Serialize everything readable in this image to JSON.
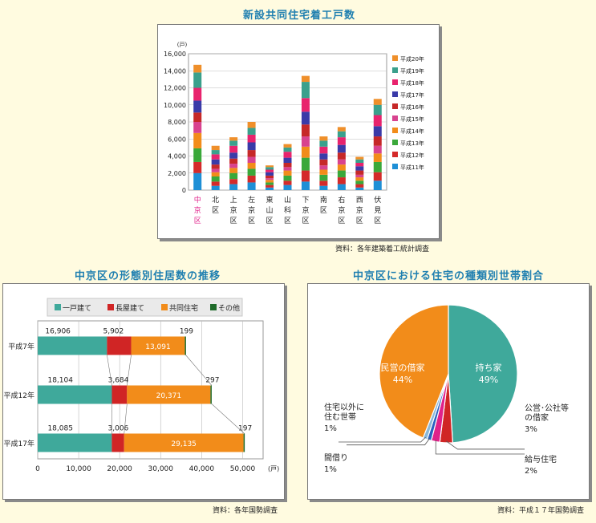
{
  "titles": {
    "chart1": "新設共同住宅着工戸数",
    "chart2": "中京区の形態別住居数の推移",
    "chart3": "中京区における住宅の種類別世帯割合"
  },
  "sources": {
    "chart1": "資料：各年建築着工統計調査",
    "chart2": "資料：各年国勢調査",
    "chart3": "資料：平成１７年国勢調査"
  },
  "chart_data": [
    {
      "type": "bar",
      "stacked": true,
      "title": "新設共同住宅着工戸数",
      "ylabel": "(戸)",
      "ylim": [
        0,
        16000
      ],
      "yticks": [
        "0",
        "2,000",
        "4,000",
        "6,000",
        "8,000",
        "10,000",
        "12,000",
        "14,000",
        "16,000"
      ],
      "yticks_values": [
        0,
        2000,
        4000,
        6000,
        8000,
        10000,
        12000,
        14000,
        16000
      ],
      "categories": [
        "中京区",
        "北区",
        "上京区",
        "左京区",
        "東山区",
        "山科区",
        "下京区",
        "南区",
        "右京区",
        "西京区",
        "伏見区"
      ],
      "highlight_category": "中京区",
      "highlight_color": "#e0218a",
      "legend_position": "right",
      "series": [
        {
          "name": "平成11年",
          "color": "#1e8fd6",
          "values": [
            2000,
            500,
            700,
            900,
            300,
            600,
            1000,
            500,
            700,
            300,
            1100
          ]
        },
        {
          "name": "平成12年",
          "color": "#d42a2a",
          "values": [
            1300,
            500,
            600,
            800,
            300,
            500,
            1300,
            600,
            800,
            400,
            1000
          ]
        },
        {
          "name": "平成13年",
          "color": "#3aa83a",
          "values": [
            1600,
            600,
            700,
            800,
            300,
            600,
            1500,
            700,
            800,
            400,
            1200
          ]
        },
        {
          "name": "平成14年",
          "color": "#f28c1a",
          "values": [
            1800,
            500,
            600,
            700,
            300,
            600,
            1300,
            600,
            700,
            400,
            1000
          ]
        },
        {
          "name": "平成15年",
          "color": "#d8438f",
          "values": [
            1300,
            400,
            500,
            700,
            200,
            400,
            1200,
            500,
            600,
            300,
            900
          ]
        },
        {
          "name": "平成16年",
          "color": "#c62828",
          "values": [
            1100,
            500,
            600,
            800,
            300,
            500,
            1400,
            700,
            800,
            500,
            1100
          ]
        },
        {
          "name": "平成17年",
          "color": "#3a3aa8",
          "values": [
            1400,
            600,
            700,
            900,
            400,
            600,
            1500,
            700,
            900,
            500,
            1200
          ]
        },
        {
          "name": "平成18年",
          "color": "#e8236d",
          "values": [
            1500,
            600,
            800,
            900,
            300,
            700,
            1600,
            800,
            900,
            400,
            1300
          ]
        },
        {
          "name": "平成19年",
          "color": "#3aa08c",
          "values": [
            1800,
            500,
            600,
            800,
            300,
            500,
            1900,
            700,
            700,
            400,
            1200
          ]
        },
        {
          "name": "平成20年",
          "color": "#ef8f2a",
          "values": [
            900,
            500,
            400,
            700,
            200,
            400,
            700,
            500,
            500,
            300,
            700
          ]
        }
      ]
    },
    {
      "type": "bar",
      "orientation": "horizontal",
      "stacked": true,
      "title": "中京区の形態別住居数の推移",
      "xlabel": "(戸)",
      "xlim": [
        0,
        55000
      ],
      "xticks": [
        "0",
        "10,000",
        "20,000",
        "30,000",
        "40,000",
        "50,000"
      ],
      "xticks_values": [
        0,
        10000,
        20000,
        30000,
        40000,
        50000
      ],
      "categories": [
        "平成7年",
        "平成12年",
        "平成17年"
      ],
      "legend_position": "top",
      "series": [
        {
          "name": "一戸建て",
          "color": "#3fa99b",
          "values": [
            16906,
            18104,
            18085
          ],
          "labels": [
            "16,906",
            "18,104",
            "18,085"
          ]
        },
        {
          "name": "長屋建て",
          "color": "#d02525",
          "values": [
            5902,
            3684,
            3006
          ],
          "labels": [
            "5,902",
            "3,684",
            "3,006"
          ]
        },
        {
          "name": "共同住宅",
          "color": "#f28c1a",
          "values": [
            13091,
            20371,
            29135
          ],
          "labels": [
            "13,091",
            "20,371",
            "29,135"
          ]
        },
        {
          "name": "その他",
          "color": "#1f6b2a",
          "values": [
            199,
            297,
            197
          ],
          "labels": [
            "199",
            "297",
            "197"
          ]
        }
      ]
    },
    {
      "type": "pie",
      "title": "中京区における住宅の種類別世帯割合",
      "slices": [
        {
          "name": "持ち家",
          "value": 49,
          "label": "持ち家",
          "pct": "49%",
          "color": "#3fa99b"
        },
        {
          "name": "公営・公社等の借家",
          "value": 3,
          "label": "公営･公社等\nの借家",
          "pct": "3%",
          "color": "#d02525"
        },
        {
          "name": "給与住宅",
          "value": 2,
          "label": "給与住宅",
          "pct": "2%",
          "color": "#e0218a"
        },
        {
          "name": "間借り",
          "value": 1,
          "label": "間借り",
          "pct": "1%",
          "color": "#2a60c0"
        },
        {
          "name": "住宅以外に住む世帯",
          "value": 1,
          "label": "住宅以外に\n住む世帯",
          "pct": "1%",
          "color": "#8ab8d8"
        },
        {
          "name": "民営の借家",
          "value": 44,
          "label": "民営の借家",
          "pct": "44%",
          "color": "#f28c1a"
        }
      ]
    }
  ]
}
